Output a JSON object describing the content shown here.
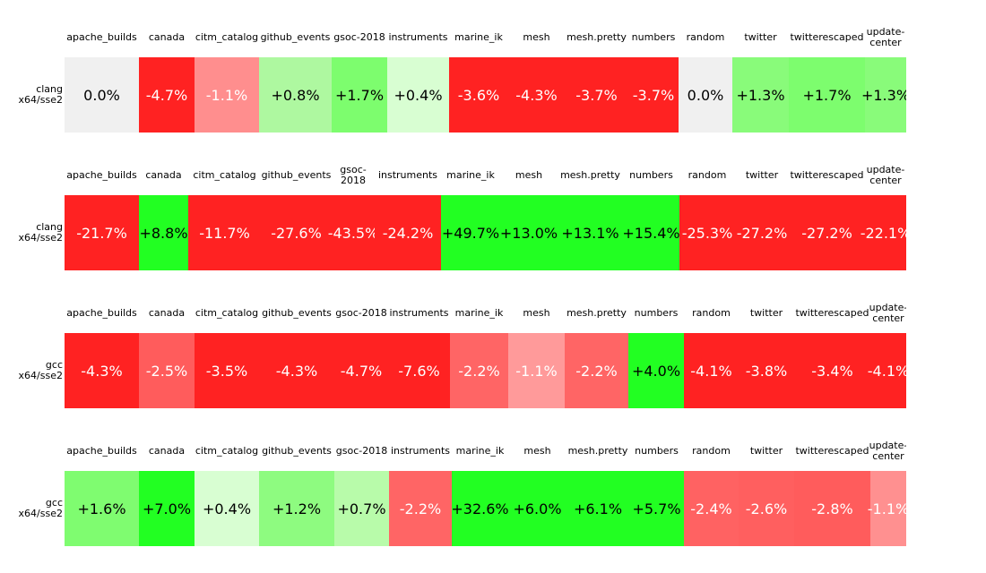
{
  "chart_data": {
    "type": "heatmap",
    "panels": [
      {
        "row_label": [
          "clang",
          "x64/sse2"
        ],
        "columns": [
          [
            "apache_builds"
          ],
          [
            "canada"
          ],
          [
            "citm_catalog"
          ],
          [
            "github_events"
          ],
          [
            "gsoc-2018"
          ],
          [
            "instruments"
          ],
          [
            "marine_ik"
          ],
          [
            "mesh"
          ],
          [
            "mesh.pretty"
          ],
          [
            "numbers"
          ],
          [
            "random"
          ],
          [
            "twitter"
          ],
          [
            "twitterescaped"
          ],
          [
            "update-",
            "center"
          ]
        ],
        "values": [
          0.0,
          -4.7,
          -1.1,
          0.8,
          1.7,
          0.4,
          -3.6,
          -4.3,
          -3.7,
          -3.7,
          0.0,
          1.3,
          1.7,
          1.3
        ],
        "labels": [
          "0.0%",
          "-4.7%",
          "-1.1%",
          "+0.8%",
          "+1.7%",
          "+0.4%",
          "-3.6%",
          "-4.3%",
          "-3.7%",
          "-3.7%",
          "0.0%",
          "+1.3%",
          "+1.7%",
          "+1.3%"
        ],
        "colors": [
          "#f0f0f0",
          "#ff2222",
          "#ff8e8e",
          "#aef8a0",
          "#7dfd6e",
          "#d8fed2",
          "#ff2222",
          "#ff2222",
          "#ff2222",
          "#ff2222",
          "#f0f0f0",
          "#89fb7a",
          "#7dfd6e",
          "#89fb7a"
        ]
      },
      {
        "row_label": [
          "clang",
          "x64/sse2"
        ],
        "columns": [
          [
            "apache_builds"
          ],
          [
            "canada"
          ],
          [
            "citm_catalog"
          ],
          [
            "github_events"
          ],
          [
            "gsoc-",
            "2018"
          ],
          [
            "instruments"
          ],
          [
            "marine_ik"
          ],
          [
            "mesh"
          ],
          [
            "mesh.pretty"
          ],
          [
            "numbers"
          ],
          [
            "random"
          ],
          [
            "twitter"
          ],
          [
            "twitterescaped"
          ],
          [
            "update-",
            "center"
          ]
        ],
        "values": [
          -21.7,
          8.8,
          -11.7,
          -27.6,
          -43.5,
          -24.2,
          49.7,
          13.0,
          13.1,
          15.4,
          -25.3,
          -27.2,
          -27.2,
          -22.1
        ],
        "labels": [
          "-21.7%",
          "+8.8%",
          "-11.7%",
          "-27.6%",
          "-43.5%",
          "-24.2%",
          "+49.7%",
          "+13.0%",
          "+13.1%",
          "+15.4%",
          "-25.3%",
          "-27.2%",
          "-27.2%",
          "-22.1%"
        ],
        "colors": [
          "#ff2222",
          "#22ff22",
          "#ff2222",
          "#ff2222",
          "#ff2222",
          "#ff2222",
          "#22ff22",
          "#22ff22",
          "#22ff22",
          "#22ff22",
          "#ff2222",
          "#ff2222",
          "#ff2222",
          "#ff2222"
        ]
      },
      {
        "row_label": [
          "gcc",
          "x64/sse2"
        ],
        "columns": [
          [
            "apache_builds"
          ],
          [
            "canada"
          ],
          [
            "citm_catalog"
          ],
          [
            "github_events"
          ],
          [
            "gsoc-2018"
          ],
          [
            "instruments"
          ],
          [
            "marine_ik"
          ],
          [
            "mesh"
          ],
          [
            "mesh.pretty"
          ],
          [
            "numbers"
          ],
          [
            "random"
          ],
          [
            "twitter"
          ],
          [
            "twitterescaped"
          ],
          [
            "update-",
            "center"
          ]
        ],
        "values": [
          -4.3,
          -2.5,
          -3.5,
          -4.3,
          -4.7,
          -7.6,
          -2.2,
          -1.1,
          -2.2,
          4.0,
          -4.1,
          -3.8,
          -3.4,
          -4.1
        ],
        "labels": [
          "-4.3%",
          "-2.5%",
          "-3.5%",
          "-4.3%",
          "-4.7%",
          "-7.6%",
          "-2.2%",
          "-1.1%",
          "-2.2%",
          "+4.0%",
          "-4.1%",
          "-3.8%",
          "-3.4%",
          "-4.1%"
        ],
        "colors": [
          "#ff2222",
          "#ff5c5c",
          "#ff2222",
          "#ff2222",
          "#ff2222",
          "#ff2222",
          "#ff6565",
          "#ff9a9a",
          "#ff6565",
          "#22ff22",
          "#ff2222",
          "#ff2222",
          "#ff2222",
          "#ff2222"
        ]
      },
      {
        "row_label": [
          "gcc",
          "x64/sse2"
        ],
        "columns": [
          [
            "apache_builds"
          ],
          [
            "canada"
          ],
          [
            "citm_catalog"
          ],
          [
            "github_events"
          ],
          [
            "gsoc-2018"
          ],
          [
            "instruments"
          ],
          [
            "marine_ik"
          ],
          [
            "mesh"
          ],
          [
            "mesh.pretty"
          ],
          [
            "numbers"
          ],
          [
            "random"
          ],
          [
            "twitter"
          ],
          [
            "twitterescaped"
          ],
          [
            "update-",
            "center"
          ]
        ],
        "values": [
          1.6,
          7.0,
          0.4,
          1.2,
          0.7,
          -2.2,
          32.6,
          6.0,
          6.1,
          5.7,
          -2.4,
          -2.6,
          -2.8,
          -1.1
        ],
        "labels": [
          "+1.6%",
          "+7.0%",
          "+0.4%",
          "+1.2%",
          "+0.7%",
          "-2.2%",
          "+32.6%",
          "+6.0%",
          "+6.1%",
          "+5.7%",
          "-2.4%",
          "-2.6%",
          "-2.8%",
          "-1.1%"
        ],
        "colors": [
          "#7ffc70",
          "#22ff22",
          "#d8fed2",
          "#8efb80",
          "#b8fbaa",
          "#ff6565",
          "#22ff22",
          "#22ff22",
          "#22ff22",
          "#22ff22",
          "#ff6262",
          "#ff5f5f",
          "#ff5c5c",
          "#ff9090"
        ]
      }
    ],
    "dark_text_colors": [
      "#f0f0f0",
      "#aef8a0",
      "#7dfd6e",
      "#d8fed2",
      "#89fb7a",
      "#22ff22",
      "#7ffc70",
      "#8efb80",
      "#b8fbaa"
    ]
  }
}
